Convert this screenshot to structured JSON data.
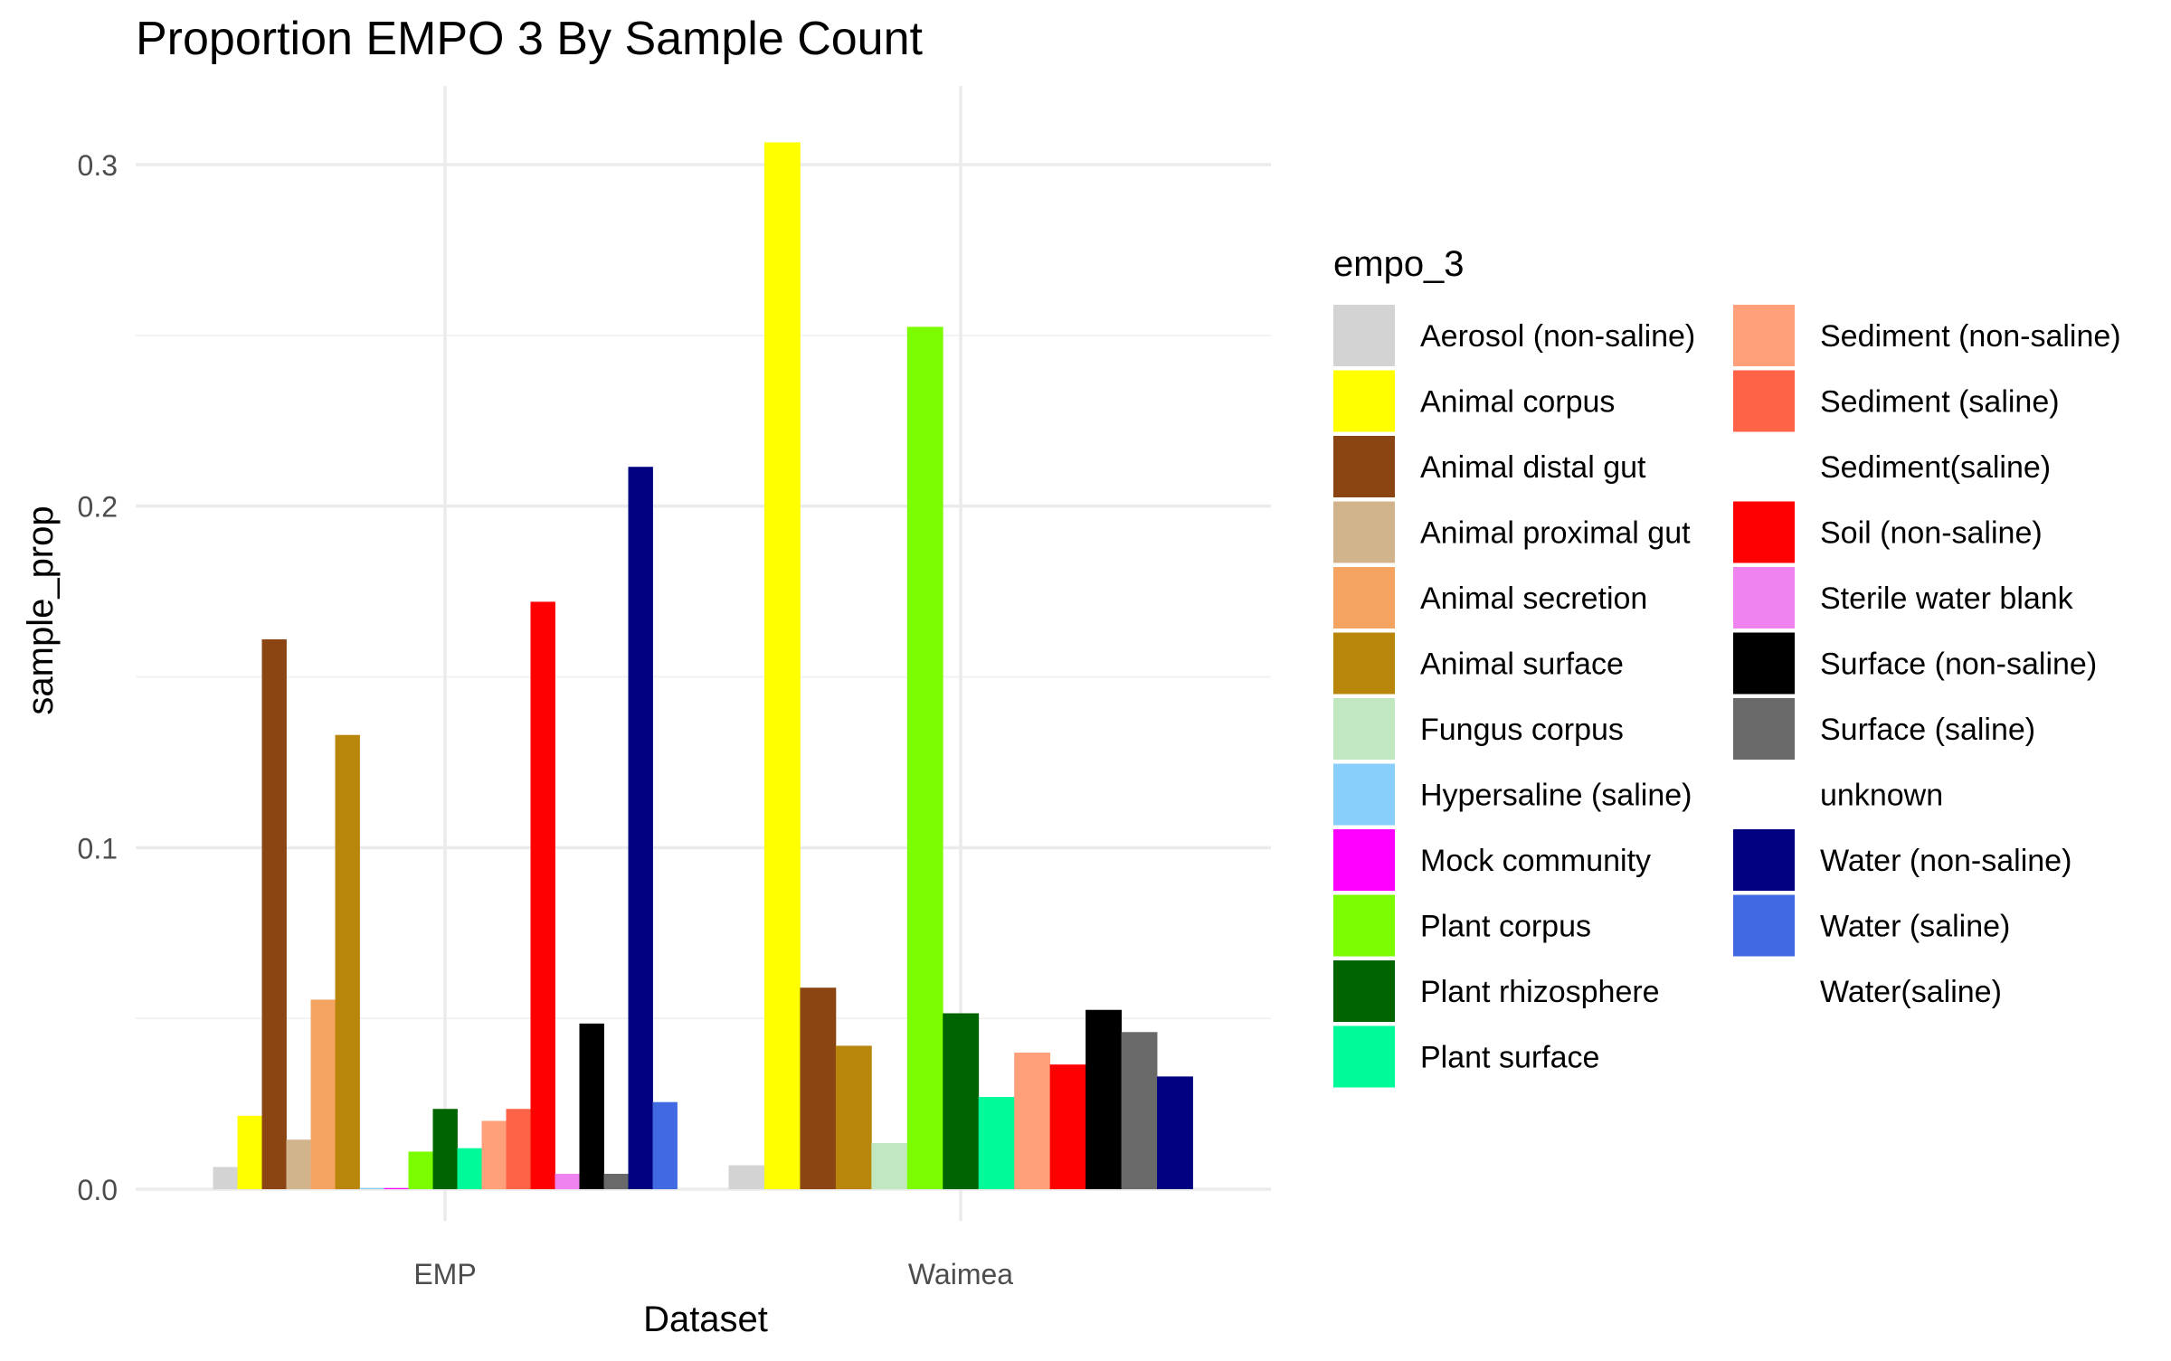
{
  "chart_data": {
    "type": "bar",
    "title": "Proportion EMPO 3 By Sample Count",
    "xlabel": "Dataset",
    "ylabel": "sample_prop",
    "ylim": [
      0,
      0.32
    ],
    "yticks": [
      0.0,
      0.1,
      0.2,
      0.3
    ],
    "ytick_labels": [
      "0.0",
      "0.1",
      "0.2",
      "0.3"
    ],
    "grid": true,
    "legend_placement": "right",
    "legend_title": "empo_3",
    "categories": [
      "EMP",
      "Waimea"
    ],
    "series": [
      {
        "name": "Aerosol (non-saline)",
        "color": "#D3D3D3",
        "values": [
          0.0065,
          0.007
        ]
      },
      {
        "name": "Animal corpus",
        "color": "#FFFF00",
        "values": [
          0.0215,
          0.3065
        ]
      },
      {
        "name": "Animal distal gut",
        "color": "#8B4513",
        "values": [
          0.161,
          0.059
        ]
      },
      {
        "name": "Animal proximal gut",
        "color": "#D2B48C",
        "values": [
          0.0145,
          null
        ]
      },
      {
        "name": "Animal secretion",
        "color": "#F4A460",
        "values": [
          0.0555,
          null
        ]
      },
      {
        "name": "Animal surface",
        "color": "#B8860B",
        "values": [
          0.133,
          0.042
        ]
      },
      {
        "name": "Fungus corpus",
        "color": "#C1E7C1",
        "values": [
          null,
          0.0135
        ]
      },
      {
        "name": "Hypersaline (saline)",
        "color": "#87CEFA",
        "values": [
          0.0003,
          null
        ]
      },
      {
        "name": "Mock community",
        "color": "#FF00FF",
        "values": [
          0.0003,
          null
        ]
      },
      {
        "name": "Plant corpus",
        "color": "#7CFC00",
        "values": [
          0.011,
          0.2525
        ]
      },
      {
        "name": "Plant rhizosphere",
        "color": "#006400",
        "values": [
          0.0235,
          0.0515
        ]
      },
      {
        "name": "Plant surface",
        "color": "#00FA9A",
        "values": [
          0.012,
          0.027
        ]
      },
      {
        "name": "Sediment (non-saline)",
        "color": "#FFA07A",
        "values": [
          0.02,
          0.04
        ]
      },
      {
        "name": "Sediment (saline)",
        "color": "#FF6347",
        "values": [
          0.0235,
          null
        ]
      },
      {
        "name": "Sediment(saline)",
        "color": "#FFFFFF",
        "values": [
          null,
          null
        ]
      },
      {
        "name": "Soil (non-saline)",
        "color": "#FF0000",
        "values": [
          0.172,
          0.0365
        ]
      },
      {
        "name": "Sterile water blank",
        "color": "#EE82EE",
        "values": [
          0.0045,
          null
        ]
      },
      {
        "name": "Surface (non-saline)",
        "color": "#000000",
        "values": [
          0.0485,
          0.0525
        ]
      },
      {
        "name": "Surface (saline)",
        "color": "#696969",
        "values": [
          0.0045,
          0.046
        ]
      },
      {
        "name": "unknown",
        "color": "#FFFFFF",
        "values": [
          null,
          null
        ]
      },
      {
        "name": "Water (non-saline)",
        "color": "#000080",
        "values": [
          0.2115,
          0.033
        ]
      },
      {
        "name": "Water (saline)",
        "color": "#4169E1",
        "values": [
          0.0255,
          null
        ]
      },
      {
        "name": "Water(saline)",
        "color": "#FFFFFF",
        "values": [
          null,
          null
        ]
      }
    ]
  }
}
